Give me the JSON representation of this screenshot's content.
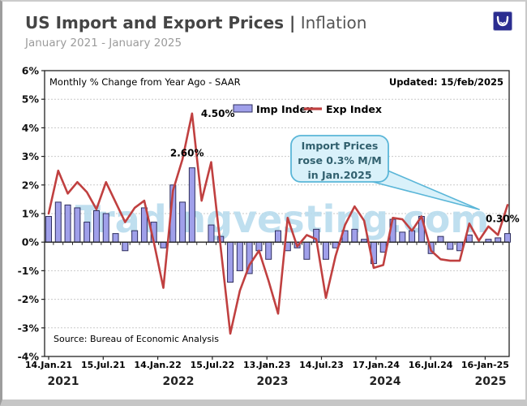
{
  "header": {
    "title_main": "US Import and Export Prices",
    "title_sep": "|",
    "title_tag": "Inflation",
    "subtitle": "January 2021 - January 2025",
    "logo_color": "#2b2d90"
  },
  "chart": {
    "inner_title": "Monthly % Change from Year Ago - SAAR",
    "updated": "Updated: 15/feb/2025",
    "watermark": "Tradingvesting.com",
    "source": "Source: Bureau of Economic Analysis",
    "callout": {
      "lines": [
        "Import Prices",
        "rose 0.3% M/M",
        "in Jan.2025"
      ]
    },
    "annotations": [
      {
        "text": "4.50%",
        "month": 15,
        "value": 4.5,
        "anchor": "right"
      },
      {
        "text": "2.60%",
        "month": 15,
        "value": 2.6,
        "anchor": "left-above"
      },
      {
        "text": "0.30%",
        "month": 48,
        "value": 0.3,
        "anchor": "left-above"
      }
    ],
    "colors": {
      "bar_fill": "#a0a0ea",
      "bar_stroke": "#2e2e5e",
      "line": "#c04040",
      "grid": "#c9c9c9",
      "axis": "#222222",
      "watermark": "#b9dcee",
      "callout_fill": "#d9f1fa",
      "callout_stroke": "#5ab6d8",
      "callout_text": "#31606e"
    }
  },
  "chart_data": {
    "type": "bar",
    "title": "US Import and Export Prices | Inflation",
    "xlabel": "",
    "ylabel": "Monthly % Change from Year Ago - SAAR",
    "ylim": [
      -4,
      6
    ],
    "ytick_format": "{v}%",
    "grid": true,
    "legend_position": "top",
    "categories": [
      "Jan-21",
      "Feb-21",
      "Mar-21",
      "Apr-21",
      "May-21",
      "Jun-21",
      "Jul-21",
      "Aug-21",
      "Sep-21",
      "Oct-21",
      "Nov-21",
      "Dec-21",
      "Jan-22",
      "Feb-22",
      "Mar-22",
      "Apr-22",
      "May-22",
      "Jun-22",
      "Jul-22",
      "Aug-22",
      "Sep-22",
      "Oct-22",
      "Nov-22",
      "Dec-22",
      "Jan-23",
      "Feb-23",
      "Mar-23",
      "Apr-23",
      "May-23",
      "Jun-23",
      "Jul-23",
      "Aug-23",
      "Sep-23",
      "Oct-23",
      "Nov-23",
      "Dec-23",
      "Jan-24",
      "Feb-24",
      "Mar-24",
      "Apr-24",
      "May-24",
      "Jun-24",
      "Jul-24",
      "Aug-24",
      "Sep-24",
      "Oct-24",
      "Nov-24",
      "Dec-24",
      "Jan-25"
    ],
    "series": [
      {
        "name": "Imp Index",
        "type": "bar",
        "values": [
          0.9,
          1.4,
          1.3,
          1.2,
          0.7,
          1.1,
          1.0,
          0.3,
          -0.3,
          0.4,
          1.2,
          0.7,
          -0.2,
          2.0,
          1.4,
          2.6,
          0.0,
          0.6,
          0.2,
          -1.4,
          -1.0,
          -1.1,
          -0.3,
          -0.6,
          0.4,
          -0.3,
          -0.2,
          -0.6,
          0.45,
          -0.6,
          -0.2,
          0.4,
          0.45,
          0.1,
          -0.75,
          -0.35,
          0.8,
          0.35,
          0.4,
          0.9,
          -0.4,
          0.2,
          -0.25,
          -0.3,
          0.25,
          0.0,
          0.1,
          0.15,
          0.3
        ]
      },
      {
        "name": "Exp Index",
        "type": "line",
        "values": [
          1.0,
          2.5,
          1.7,
          2.1,
          1.75,
          1.15,
          2.1,
          1.4,
          0.7,
          1.2,
          1.45,
          0.0,
          -1.6,
          1.8,
          2.9,
          4.5,
          1.45,
          2.8,
          -0.2,
          -3.2,
          -1.7,
          -0.8,
          -0.3,
          -1.35,
          -2.5,
          0.85,
          -0.15,
          0.25,
          0.1,
          -1.95,
          -0.5,
          0.6,
          1.25,
          0.75,
          -0.9,
          -0.8,
          0.85,
          0.8,
          0.4,
          0.9,
          -0.3,
          -0.6,
          -0.65,
          -0.65,
          0.65,
          0.05,
          0.55,
          0.25,
          1.3
        ]
      }
    ],
    "xtick_labels": [
      "14.Jan.21",
      "15.Jul.21",
      "14.Jan.22",
      "15.Jul.22",
      "13.Jan.23",
      "14.Jul.23",
      "17.Jan.24",
      "16.Jul.24",
      "16-Jan-25"
    ],
    "year_labels": [
      "2021",
      "2022",
      "2023",
      "2024",
      "2025"
    ]
  }
}
